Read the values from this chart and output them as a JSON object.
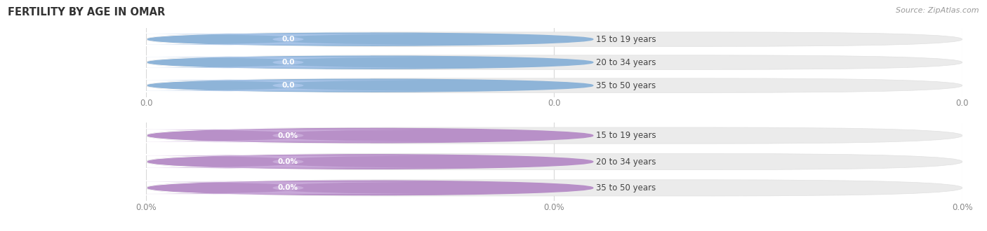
{
  "title": "FERTILITY BY AGE IN OMAR",
  "source": "Source: ZipAtlas.com",
  "categories": [
    "15 to 19 years",
    "20 to 34 years",
    "35 to 50 years"
  ],
  "values_count": [
    0.0,
    0.0,
    0.0
  ],
  "values_pct": [
    0.0,
    0.0,
    0.0
  ],
  "xtick_labels_count": [
    "0.0",
    "0.0",
    "0.0"
  ],
  "xtick_labels_pct": [
    "0.0%",
    "0.0%",
    "0.0%"
  ],
  "bar_bg_color": "#ebebeb",
  "bar_bg_edge": "#e0e0e0",
  "label_bg_count": "#c8daf0",
  "label_bg_pct": "#d4bedd",
  "label_circle_count": "#8eb4d8",
  "label_circle_pct": "#b890c8",
  "value_bg_count": "#a8c4e8",
  "value_bg_pct": "#c8a8d8",
  "value_text_color": "#ffffff",
  "label_text_color": "#444444",
  "title_color": "#333333",
  "source_color": "#999999",
  "background_color": "#ffffff",
  "gridline_color": "#d8d8d8"
}
